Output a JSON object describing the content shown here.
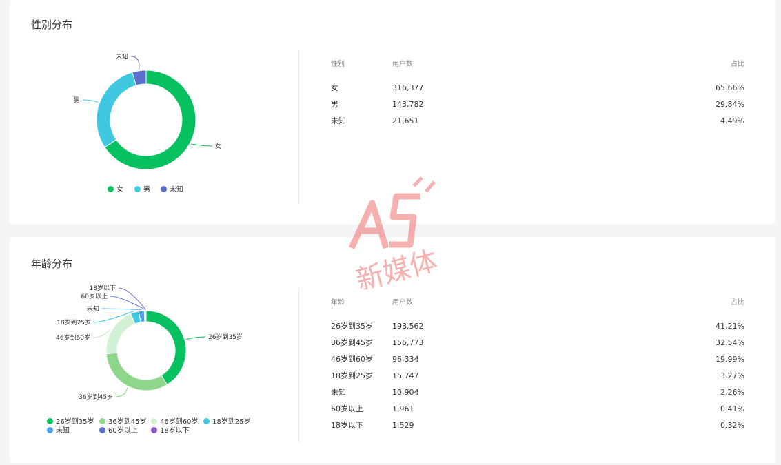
{
  "watermark": {
    "logo_text": "A5 新媒体"
  },
  "gender": {
    "title": "性别分布",
    "table": {
      "headers": [
        "性别",
        "用户数",
        "占比"
      ],
      "rows": [
        [
          "女",
          "316,377",
          "65.66%"
        ],
        [
          "男",
          "143,782",
          "29.84%"
        ],
        [
          "未知",
          "21,651",
          "4.49%"
        ]
      ]
    }
  },
  "age": {
    "title": "年龄分布",
    "table": {
      "headers": [
        "年龄",
        "用户数",
        "占比"
      ],
      "rows": [
        [
          "26岁到35岁",
          "198,562",
          "41.21%"
        ],
        [
          "36岁到45岁",
          "156,773",
          "32.54%"
        ],
        [
          "46岁到60岁",
          "96,334",
          "19.99%"
        ],
        [
          "18岁到25岁",
          "15,747",
          "3.27%"
        ],
        [
          "未知",
          "10,904",
          "2.26%"
        ],
        [
          "60岁以上",
          "1,961",
          "0.41%"
        ],
        [
          "18岁以下",
          "1,529",
          "0.32%"
        ]
      ]
    }
  },
  "chart_data": [
    {
      "type": "pie",
      "variant": "donut",
      "title": "性别分布",
      "legend_position": "bottom",
      "categories": [
        "女",
        "男",
        "未知"
      ],
      "values": [
        316377,
        143782,
        21651
      ],
      "colors": [
        "#07c160",
        "#40c8e0",
        "#5d6fcc"
      ]
    },
    {
      "type": "pie",
      "variant": "donut",
      "title": "年龄分布",
      "legend_position": "bottom",
      "categories": [
        "26岁到35岁",
        "36岁到45岁",
        "46岁到60岁",
        "18岁到25岁",
        "未知",
        "60岁以上",
        "18岁以下"
      ],
      "values": [
        198562,
        156773,
        96334,
        15747,
        10904,
        1961,
        1529
      ],
      "colors": [
        "#07c160",
        "#8ed68a",
        "#d2f0d3",
        "#40c8e0",
        "#4ea3e6",
        "#5d6fcc",
        "#8a5bd0"
      ]
    }
  ]
}
